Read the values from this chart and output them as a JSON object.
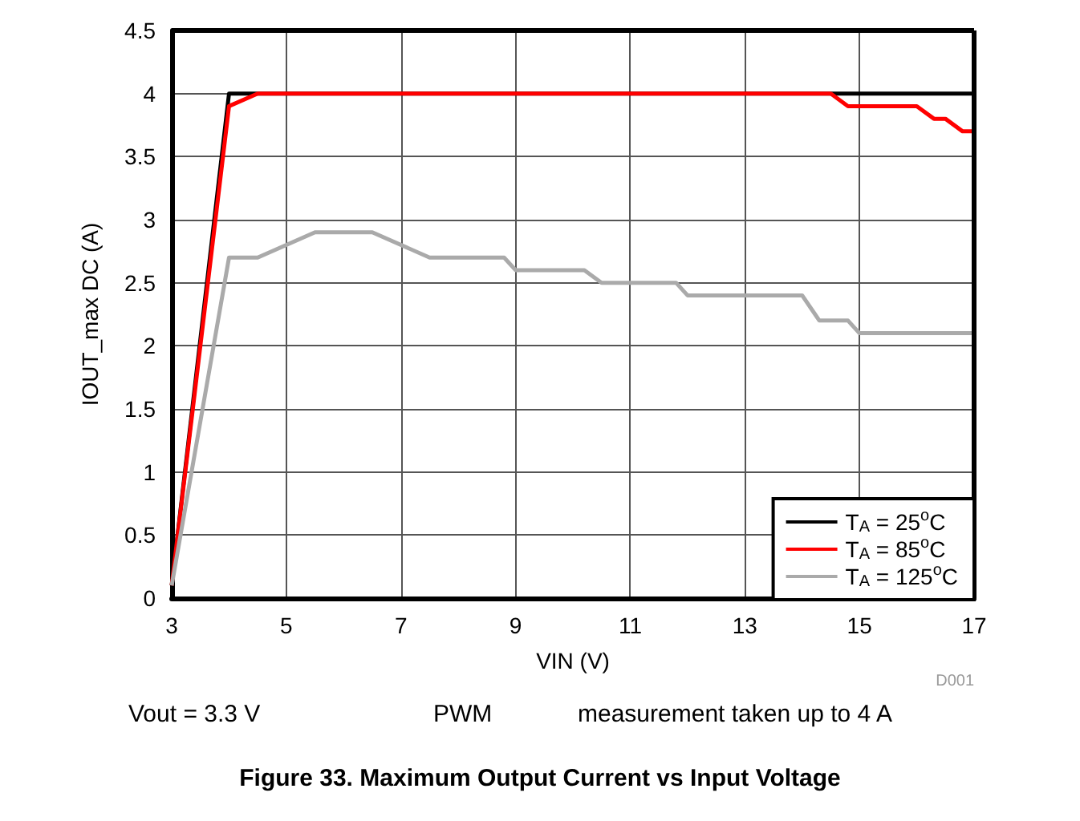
{
  "chart_data": {
    "type": "line",
    "title": "Figure 33. Maximum Output Current vs Input Voltage",
    "xlabel": "VIN (V)",
    "ylabel": "IOUT_max DC (A)",
    "annotations": [
      "D001",
      "Vout = 3.3 V",
      "PWM",
      "measurement taken up to 4 A"
    ],
    "xlim": [
      3,
      17
    ],
    "xticks": [
      3,
      5,
      7,
      9,
      11,
      13,
      15,
      17
    ],
    "ylim": [
      0,
      4.5
    ],
    "yticks": [
      0,
      0.5,
      1,
      1.5,
      2,
      2.5,
      3,
      3.5,
      4,
      4.5
    ],
    "grid": true,
    "legend": "bottom right",
    "marker": "none",
    "line_style": "solid",
    "series": [
      {
        "name": "T$_{A}$ = 25$^{o}$C",
        "color": "#000000",
        "x": [
          3,
          4,
          17
        ],
        "values": [
          0.1,
          4,
          4
        ]
      },
      {
        "name": "T$_{A}$ = 85$^{o}$C",
        "color": "#ff0000",
        "x": [
          3,
          4,
          4.5,
          14.5,
          14.8,
          16,
          16.3,
          16.5,
          16.8,
          17
        ],
        "values": [
          0.1,
          3.9,
          4,
          4,
          3.9,
          3.9,
          3.8,
          3.8,
          3.7,
          3.7
        ]
      },
      {
        "name": "T$_{A}$ = 125$^{o}$C",
        "color": "#aaaaaa",
        "x": [
          3,
          4,
          4.5,
          5.5,
          6.5,
          7.5,
          8.8,
          9,
          10.2,
          10.5,
          11.8,
          12,
          14,
          14.3,
          14.8,
          15,
          17
        ],
        "values": [
          0.1,
          2.7,
          2.7,
          2.9,
          2.9,
          2.7,
          2.7,
          2.6,
          2.6,
          2.5,
          2.5,
          2.4,
          2.4,
          2.2,
          2.2,
          2.1,
          2.1
        ]
      }
    ]
  }
}
